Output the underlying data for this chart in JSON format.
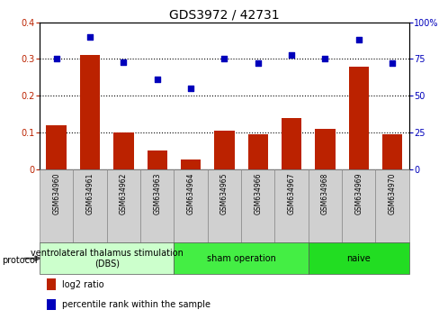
{
  "title": "GDS3972 / 42731",
  "samples": [
    "GSM634960",
    "GSM634961",
    "GSM634962",
    "GSM634963",
    "GSM634964",
    "GSM634965",
    "GSM634966",
    "GSM634967",
    "GSM634968",
    "GSM634969",
    "GSM634970"
  ],
  "log2_ratio": [
    0.12,
    0.31,
    0.1,
    0.05,
    0.025,
    0.105,
    0.095,
    0.14,
    0.11,
    0.28,
    0.095
  ],
  "percentile_rank": [
    75,
    90,
    73,
    61,
    55,
    75,
    72,
    78,
    75,
    88,
    72
  ],
  "bar_color": "#bb2200",
  "scatter_color": "#0000bb",
  "left_ylim": [
    0,
    0.4
  ],
  "right_ylim": [
    0,
    100
  ],
  "left_yticks": [
    0,
    0.1,
    0.2,
    0.3,
    0.4
  ],
  "right_yticks": [
    0,
    25,
    50,
    75,
    100
  ],
  "left_yticklabels": [
    "0",
    "0.1",
    "0.2",
    "0.3",
    "0.4"
  ],
  "right_yticklabels": [
    "0",
    "25",
    "50",
    "75",
    "100%"
  ],
  "hlines": [
    0.1,
    0.2,
    0.3
  ],
  "groups": [
    {
      "label": "ventrolateral thalamus stimulation\n(DBS)",
      "start": 0,
      "end": 3,
      "color": "#ccffcc"
    },
    {
      "label": "sham operation",
      "start": 4,
      "end": 7,
      "color": "#44ee44"
    },
    {
      "label": "naive",
      "start": 8,
      "end": 10,
      "color": "#22dd22"
    }
  ],
  "legend_bar_label": "log2 ratio",
  "legend_scatter_label": "percentile rank within the sample",
  "protocol_label": "protocol",
  "bar_width": 0.6,
  "title_fontsize": 10,
  "tick_fontsize": 7,
  "label_fontsize": 7,
  "group_fontsize": 7,
  "sample_fontsize": 5.5
}
